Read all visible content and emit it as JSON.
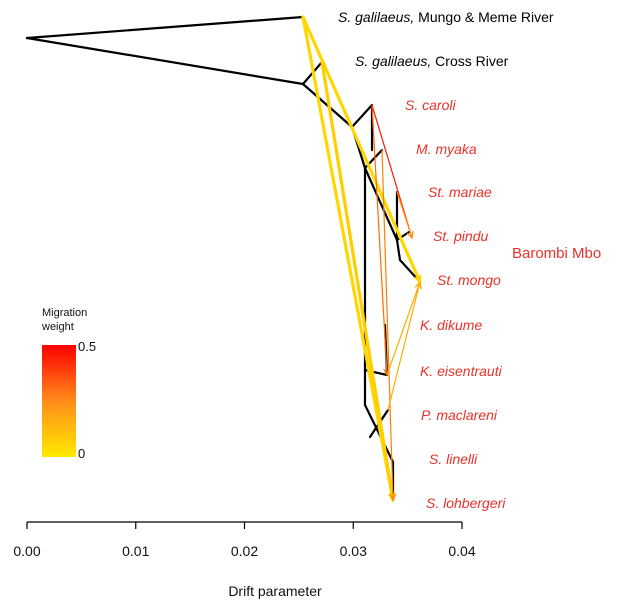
{
  "colors": {
    "tree": "#000000",
    "black_label": "#000000",
    "red_label": "#e8322a",
    "migration_low": "#ffd700",
    "migration_high": "#ff0000"
  },
  "taxa": [
    {
      "id": "mungo",
      "italic": "S. galilaeus,",
      "rest": " Mungo & Meme River",
      "color": "black"
    },
    {
      "id": "cross",
      "italic": "S. galilaeus,",
      "rest": " Cross River",
      "color": "black"
    },
    {
      "id": "caroli",
      "italic": "S. caroli",
      "rest": "",
      "color": "red"
    },
    {
      "id": "myaka",
      "italic": "M. myaka",
      "rest": "",
      "color": "red"
    },
    {
      "id": "mariae",
      "italic": "St. mariae",
      "rest": "",
      "color": "red"
    },
    {
      "id": "pindu",
      "italic": "St. pindu",
      "rest": "",
      "color": "red"
    },
    {
      "id": "mongo",
      "italic": "St. mongo",
      "rest": "",
      "color": "red"
    },
    {
      "id": "dikume",
      "italic": "K. dikume",
      "rest": "",
      "color": "red"
    },
    {
      "id": "eisentrauti",
      "italic": "K. eisentrauti",
      "rest": "",
      "color": "red"
    },
    {
      "id": "maclareni",
      "italic": "P. maclareni",
      "rest": "",
      "color": "red"
    },
    {
      "id": "linelli",
      "italic": "S. linelli",
      "rest": "",
      "color": "red"
    },
    {
      "id": "lohbergeri",
      "italic": "S. lohbergeri",
      "rest": "",
      "color": "red"
    }
  ],
  "group_label": "Barombi Mbo",
  "legend": {
    "title_line1": "Migration",
    "title_line2": "weight",
    "max_label": "0.5",
    "min_label": "0"
  },
  "axis": {
    "title": "Drift parameter",
    "ticks": [
      "0.00",
      "0.01",
      "0.02",
      "0.03",
      "0.04"
    ],
    "range": [
      0.0,
      0.04
    ]
  },
  "migration_edges": [
    {
      "from": "mungo",
      "to": "mongo",
      "weight": 0.0
    },
    {
      "from": "mungo",
      "to": "lohbergeri",
      "weight": 0.0
    },
    {
      "from": "cross",
      "to": "lohbergeri",
      "weight": 0.02
    },
    {
      "from": "caroli",
      "to": "pindu",
      "weight": 0.45
    },
    {
      "from": "caroli",
      "to": "eisentrauti",
      "weight": 0.25
    },
    {
      "from": "myaka",
      "to": "lohbergeri",
      "weight": 0.2
    },
    {
      "from": "mariae",
      "to": "pindu",
      "weight": 0.15
    },
    {
      "from": "eisentrauti",
      "to": "mongo",
      "weight": 0.1
    },
    {
      "from": "maclareni",
      "to": "mongo",
      "weight": 0.1
    }
  ]
}
